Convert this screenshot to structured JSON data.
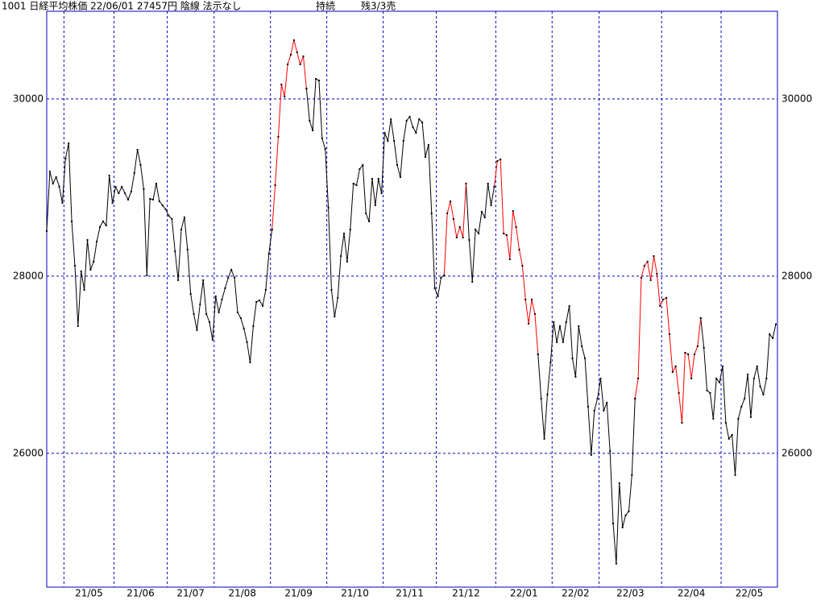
{
  "chart_data": {
    "type": "line",
    "title": "1001 日経平均株価 22/06/01 27457円 陰線 法示なし",
    "status": "持続",
    "remaining": "残3/3売",
    "frame_color": "#0000c0",
    "point_color": "#000000",
    "grid": true,
    "ylim": [
      24490,
      30990
    ],
    "yticks": [
      26000,
      28000,
      30000
    ],
    "categories": [
      null,
      null,
      null,
      null,
      null,
      null,
      "21/05",
      null,
      null,
      null,
      null,
      null,
      null,
      null,
      null,
      null,
      null,
      null,
      null,
      null,
      null,
      null,
      "21/06",
      null,
      null,
      null,
      null,
      null,
      null,
      null,
      null,
      null,
      null,
      null,
      null,
      null,
      null,
      null,
      null,
      "21/07",
      null,
      null,
      null,
      null,
      null,
      null,
      null,
      null,
      null,
      null,
      null,
      null,
      null,
      null,
      "21/08",
      null,
      null,
      null,
      null,
      null,
      null,
      null,
      null,
      null,
      null,
      null,
      null,
      null,
      null,
      null,
      null,
      null,
      "21/09",
      null,
      null,
      null,
      null,
      null,
      null,
      null,
      null,
      null,
      null,
      null,
      null,
      null,
      null,
      null,
      null,
      null,
      "21/10",
      null,
      null,
      null,
      null,
      null,
      null,
      null,
      null,
      null,
      null,
      null,
      null,
      null,
      null,
      null,
      null,
      null,
      "21/11",
      null,
      null,
      null,
      null,
      null,
      null,
      null,
      null,
      null,
      null,
      null,
      null,
      null,
      null,
      null,
      null,
      "21/12",
      null,
      null,
      null,
      null,
      null,
      null,
      null,
      null,
      null,
      null,
      null,
      null,
      null,
      null,
      null,
      null,
      null,
      null,
      "22/01",
      null,
      null,
      null,
      null,
      null,
      null,
      null,
      null,
      null,
      null,
      null,
      null,
      null,
      null,
      null,
      null,
      null,
      "22/02",
      null,
      null,
      null,
      null,
      null,
      null,
      null,
      null,
      null,
      null,
      null,
      null,
      null,
      null,
      "22/03",
      null,
      null,
      null,
      null,
      null,
      null,
      null,
      null,
      null,
      null,
      null,
      null,
      null,
      null,
      null,
      null,
      null,
      null,
      null,
      "22/04",
      null,
      null,
      null,
      null,
      null,
      null,
      null,
      null,
      null,
      null,
      null,
      null,
      null,
      null,
      null,
      null,
      null,
      null,
      "22/05",
      null,
      null,
      null,
      null,
      null,
      null,
      null,
      null,
      null,
      null,
      null,
      null,
      null,
      null,
      null,
      null,
      null
    ],
    "series": [
      {
        "color": "#000000",
        "values": [
          28510,
          29180,
          29045,
          29118,
          29010,
          28827,
          29327,
          29500,
          28618,
          28118,
          27436,
          28055,
          27845,
          28409,
          28073,
          28164,
          28390,
          28555,
          28618,
          28573,
          29136,
          28827,
          29009,
          28936,
          29009,
          28936,
          28864,
          28955,
          29164,
          29427,
          29255,
          28982,
          28009,
          28873,
          28864,
          29045,
          28845,
          28800,
          28755,
          28682,
          28645,
          28282,
          27955,
          28527,
          28664,
          28300,
          27800,
          27573,
          27391,
          27682,
          27955,
          27573,
          27482,
          27282,
          27773,
          27591,
          27736,
          27864,
          27982,
          28073,
          27982,
          27591,
          27527,
          27409,
          27255,
          27027,
          27436,
          27709,
          27727,
          27664,
          27845,
          28255,
          28527,
          null,
          null,
          null,
          null,
          null,
          null,
          null,
          null,
          null,
          null,
          30118,
          29755,
          29645,
          30227,
          30209,
          29555,
          29436,
          28773,
          27845,
          27545,
          27755,
          28227,
          28482,
          28164,
          28527,
          29045,
          29027,
          29209,
          29255,
          28709,
          28618,
          29100,
          28800,
          29100,
          28936,
          29618,
          29527,
          29773,
          29527,
          29255,
          29118,
          29527,
          29755,
          29800,
          29682,
          29618,
          29773,
          29736,
          29345,
          29482,
          28709,
          27864,
          27773,
          27982,
          28009,
          null,
          null,
          null,
          null,
          null,
          null,
          29045,
          28409,
          27936,
          28527,
          28482,
          28727,
          28664,
          29045,
          28800,
          29009,
          null,
          null,
          null,
          null,
          null,
          null,
          null,
          null,
          null,
          null,
          null,
          null,
          null,
          27118,
          26618,
          26164,
          26664,
          27027,
          27482,
          27255,
          27436,
          27255,
          27482,
          27664,
          27073,
          26864,
          27436,
          27209,
          27073,
          26527,
          25982,
          26482,
          26618,
          26845,
          26482,
          26573,
          26027,
          25209,
          24755,
          25664,
          25164,
          25300,
          25345,
          25755,
          26618,
          null,
          null,
          null,
          null,
          null,
          null,
          null,
          null,
          null,
          null,
          null,
          null,
          null,
          null,
          null,
          null,
          null,
          null,
          null,
          null,
          27527,
          27191,
          26709,
          26682,
          26391,
          26845,
          26800,
          26982,
          26345,
          26164,
          26209,
          25755,
          26391,
          26527,
          26618,
          26891,
          26409,
          26845,
          26982,
          26755,
          26664,
          26845,
          27345,
          27300,
          27457
        ]
      },
      {
        "color": "#ff0000",
        "values": [
          null,
          null,
          null,
          null,
          null,
          null,
          null,
          null,
          null,
          null,
          null,
          null,
          null,
          null,
          null,
          null,
          null,
          null,
          null,
          null,
          null,
          null,
          null,
          null,
          null,
          null,
          null,
          null,
          null,
          null,
          null,
          null,
          null,
          null,
          null,
          null,
          null,
          null,
          null,
          null,
          null,
          null,
          null,
          null,
          null,
          null,
          null,
          null,
          null,
          null,
          null,
          null,
          null,
          null,
          null,
          null,
          null,
          null,
          null,
          null,
          null,
          null,
          null,
          null,
          null,
          null,
          null,
          null,
          null,
          null,
          null,
          null,
          28527,
          29027,
          29573,
          30164,
          30027,
          30391,
          30500,
          30664,
          30527,
          30391,
          30482,
          30118,
          null,
          null,
          null,
          null,
          null,
          null,
          null,
          null,
          null,
          null,
          null,
          null,
          null,
          null,
          null,
          null,
          null,
          null,
          null,
          null,
          null,
          null,
          null,
          null,
          null,
          null,
          null,
          null,
          null,
          null,
          null,
          null,
          null,
          null,
          null,
          null,
          null,
          null,
          null,
          null,
          null,
          null,
          null,
          28009,
          28709,
          28845,
          28645,
          28436,
          28555,
          28436,
          29045,
          null,
          null,
          null,
          null,
          null,
          null,
          null,
          null,
          29009,
          29300,
          29318,
          28482,
          28464,
          28191,
          28736,
          28555,
          28300,
          28118,
          27736,
          27464,
          27736,
          27573,
          27118,
          null,
          null,
          null,
          null,
          null,
          null,
          null,
          null,
          null,
          null,
          null,
          null,
          null,
          null,
          null,
          null,
          null,
          null,
          null,
          null,
          null,
          null,
          null,
          null,
          null,
          null,
          null,
          null,
          null,
          null,
          26618,
          26845,
          27982,
          28118,
          28164,
          27955,
          28227,
          28027,
          27664,
          27736,
          27755,
          27345,
          26918,
          26982,
          26682,
          26345,
          27136,
          27118,
          26845,
          27118,
          27209,
          27527,
          null,
          null,
          null,
          null,
          null,
          null,
          null,
          null,
          null,
          null,
          null,
          null,
          null,
          null,
          null,
          null,
          null,
          null,
          null,
          null,
          null,
          null,
          null,
          null
        ]
      }
    ]
  }
}
